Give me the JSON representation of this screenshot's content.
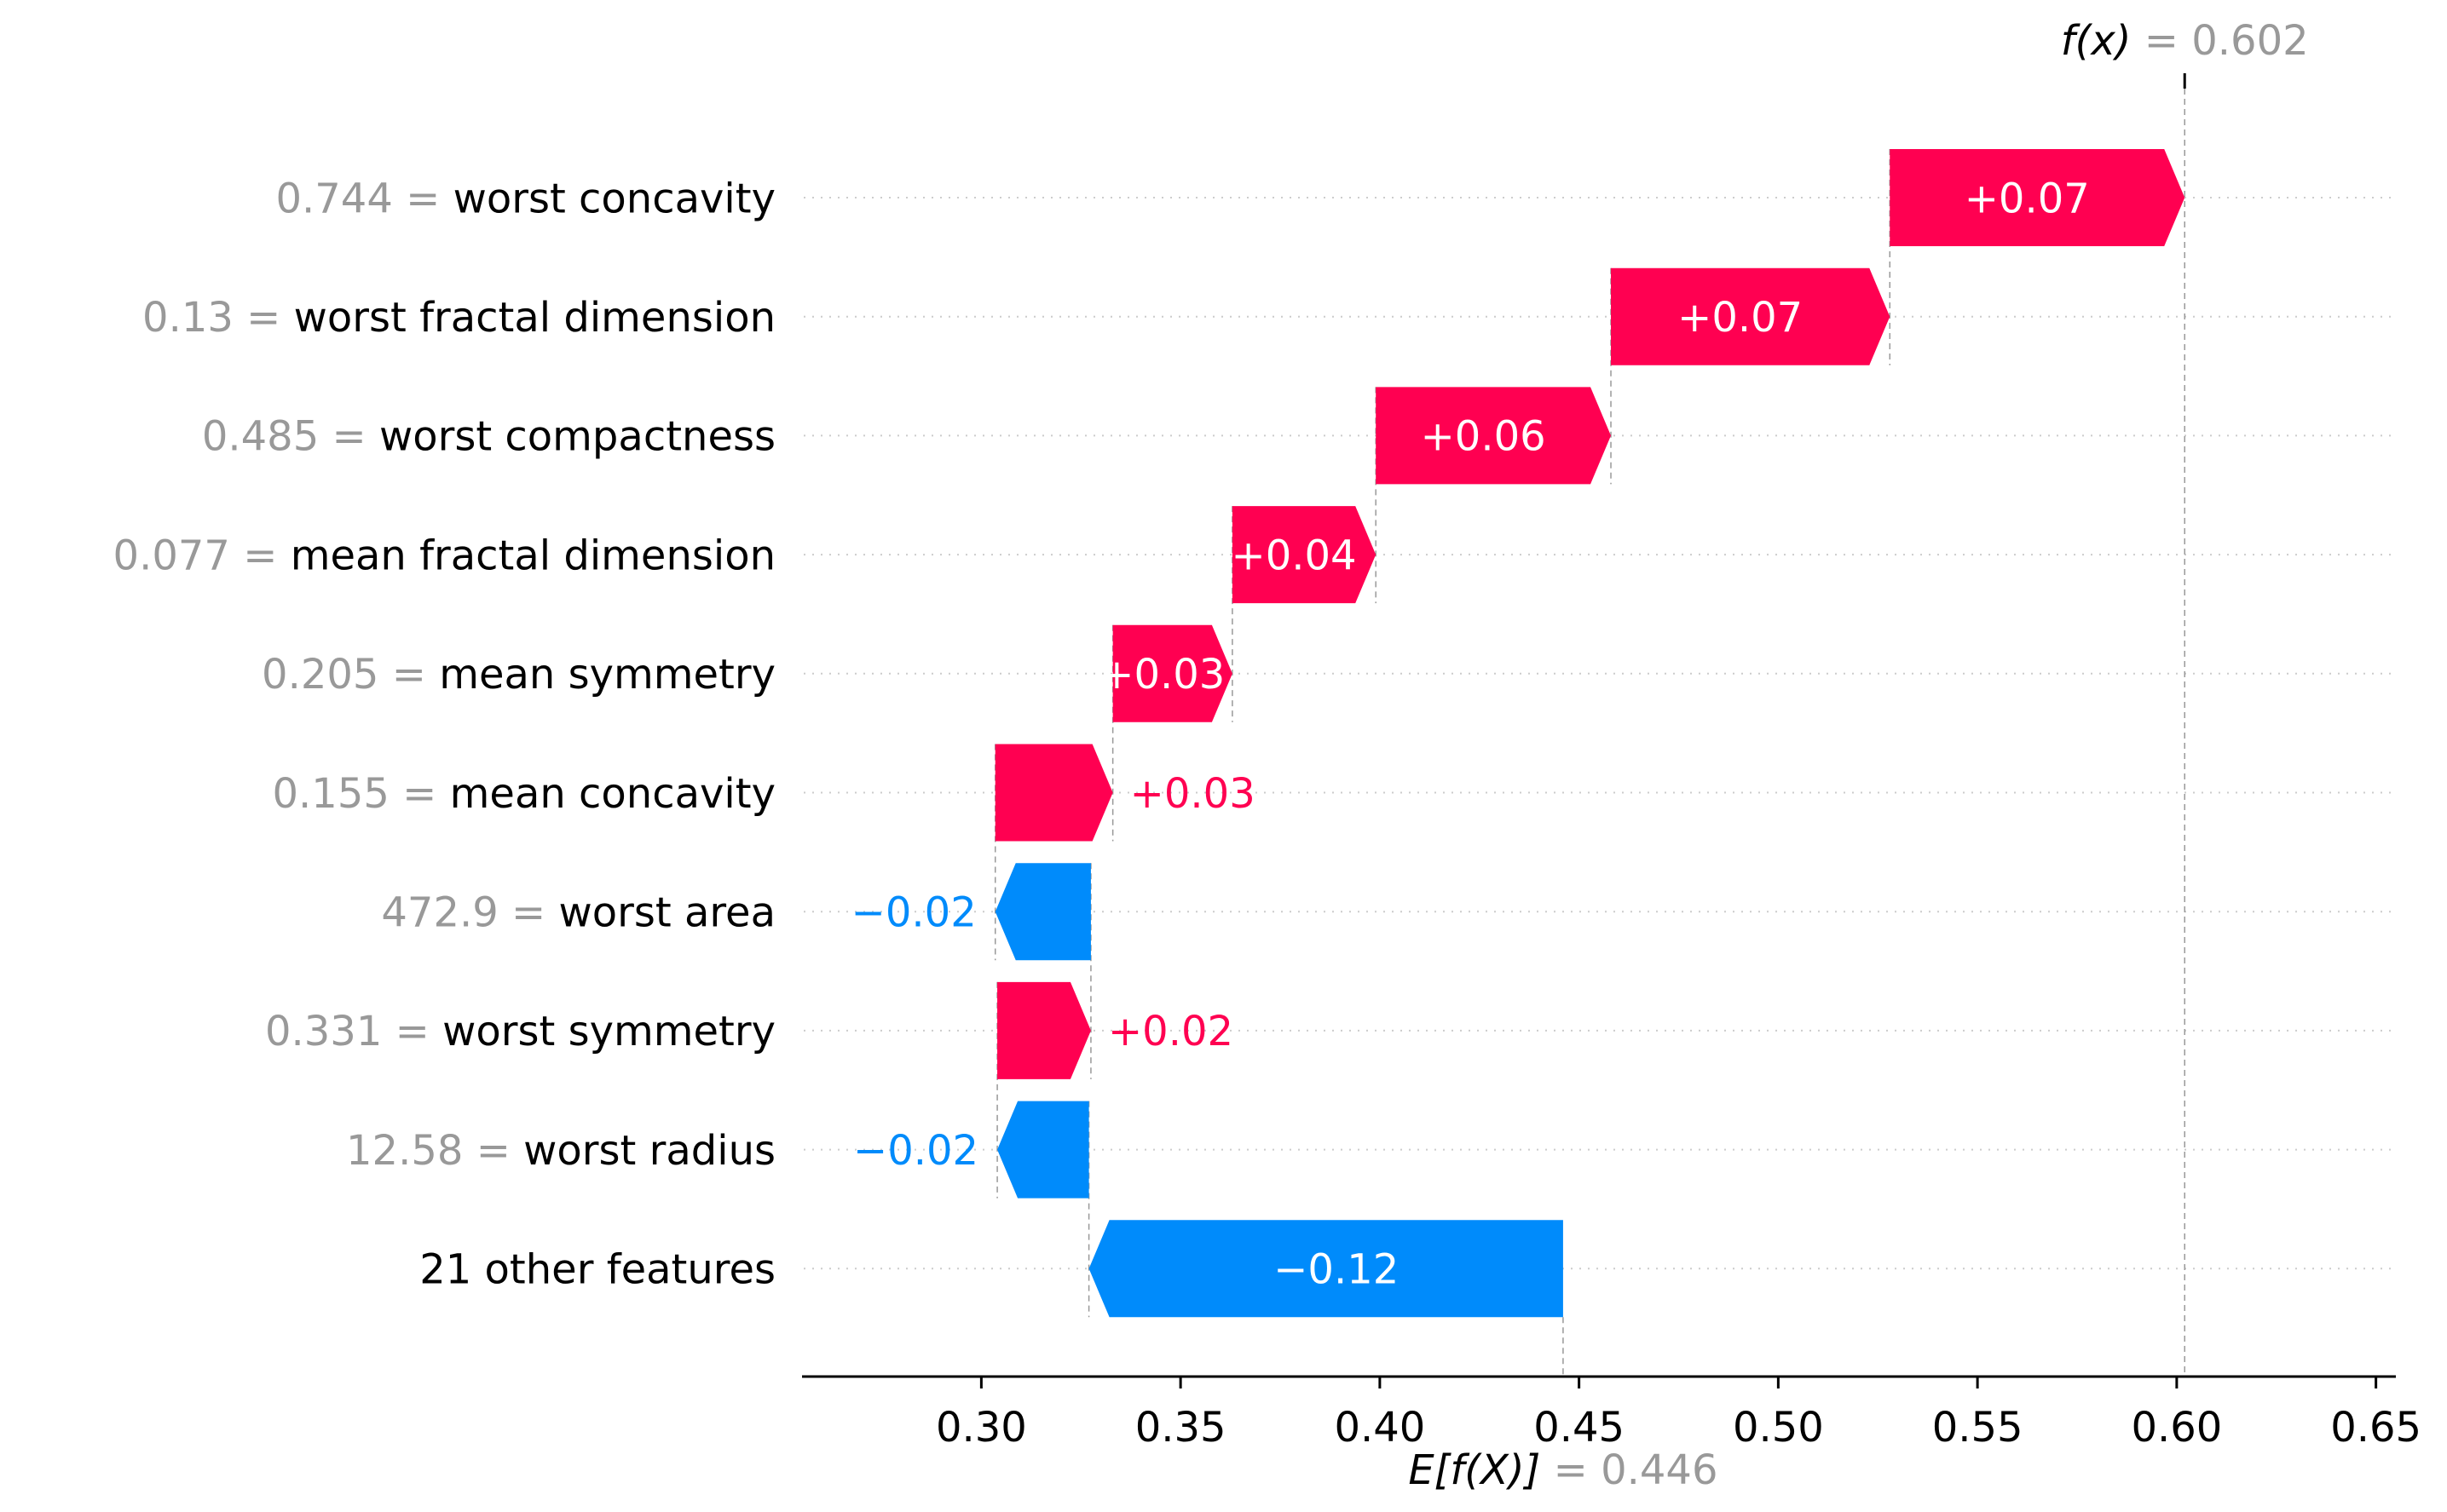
{
  "chart_data": {
    "type": "waterfall",
    "base_value": 0.446,
    "output_value": 0.602,
    "fx_label": {
      "prefix": "f(x)",
      "eq": " = 0.602"
    },
    "ex_label": {
      "prefix": "E[f(X)]",
      "eq": " = 0.446"
    },
    "xlim": [
      0.255,
      0.655
    ],
    "xticks": [
      0.3,
      0.35,
      0.4,
      0.45,
      0.5,
      0.55,
      0.6,
      0.65
    ],
    "xtick_labels": [
      "0.30",
      "0.35",
      "0.40",
      "0.45",
      "0.50",
      "0.55",
      "0.60",
      "0.65"
    ],
    "features": [
      {
        "value_text": "0.744",
        "name": "worst concavity",
        "start": 0.528,
        "end": 0.602,
        "label": "+0.07"
      },
      {
        "value_text": "0.13",
        "name": "worst fractal dimension",
        "start": 0.458,
        "end": 0.528,
        "label": "+0.07"
      },
      {
        "value_text": "0.485",
        "name": "worst compactness",
        "start": 0.399,
        "end": 0.458,
        "label": "+0.06"
      },
      {
        "value_text": "0.077",
        "name": "mean fractal dimension",
        "start": 0.363,
        "end": 0.399,
        "label": "+0.04"
      },
      {
        "value_text": "0.205",
        "name": "mean symmetry",
        "start": 0.333,
        "end": 0.363,
        "label": "+0.03"
      },
      {
        "value_text": "0.155",
        "name": "mean concavity",
        "start": 0.3035,
        "end": 0.333,
        "label": "+0.03"
      },
      {
        "value_text": "472.9",
        "name": "worst area",
        "start": 0.3275,
        "end": 0.3035,
        "label": "−0.02"
      },
      {
        "value_text": "0.331",
        "name": "worst symmetry",
        "start": 0.304,
        "end": 0.3275,
        "label": "+0.02"
      },
      {
        "value_text": "12.58",
        "name": "worst radius",
        "start": 0.327,
        "end": 0.304,
        "label": "−0.02"
      },
      {
        "value_text": "",
        "name": "21 other features",
        "start": 0.446,
        "end": 0.327,
        "label": "−0.12"
      }
    ],
    "colors": {
      "positive": "#ff0051",
      "negative": "#008bfb",
      "value_text": "#999999",
      "feature_text": "#000000",
      "grid": "#cccccc",
      "axis": "#000000"
    }
  }
}
